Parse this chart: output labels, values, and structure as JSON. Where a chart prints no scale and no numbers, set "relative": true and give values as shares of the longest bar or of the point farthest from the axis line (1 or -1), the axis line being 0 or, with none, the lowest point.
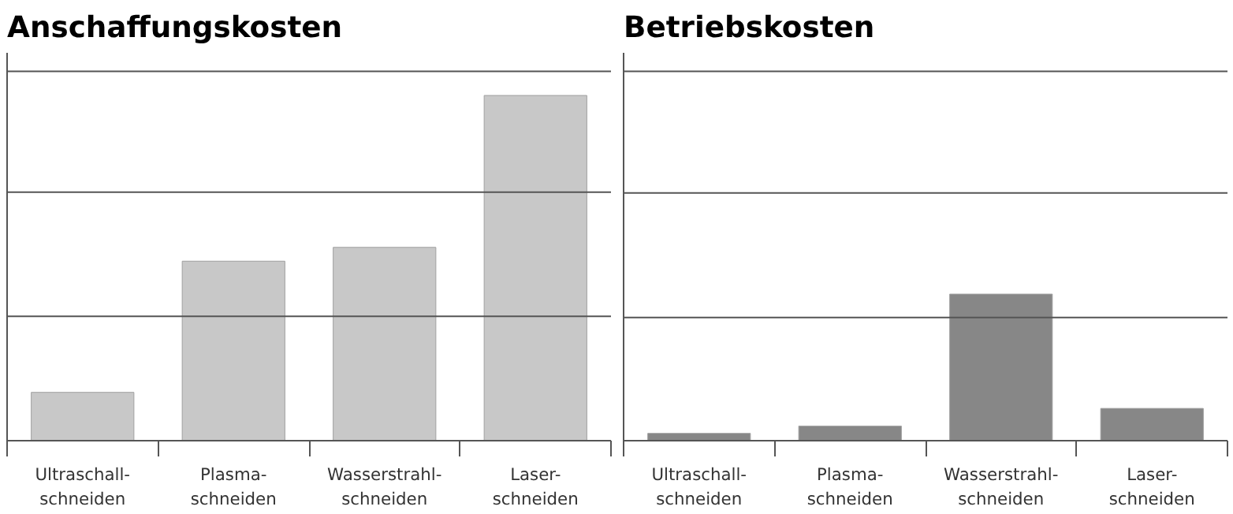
{
  "chart_data": [
    {
      "type": "bar",
      "title": "Anschaffungskosten",
      "categories": [
        "Ultraschall-\nschneiden",
        "Plasma-\nschneiden",
        "Wasserstrahl-\nschneiden",
        "Laser-\nschneiden"
      ],
      "values": [
        0.14,
        0.52,
        0.56,
        1
      ],
      "color": "#c8c8c8",
      "relative": true,
      "ref_lines": [
        {
          "axis": "y",
          "value": 0.36,
          "color": "#555555"
        },
        {
          "axis": "y",
          "value": 0.72,
          "color": "#555555"
        },
        {
          "axis": "y",
          "value": 1.07,
          "color": "#555555"
        }
      ]
    },
    {
      "type": "bar",
      "title": "Betriebskosten",
      "categories": [
        "Ultraschall-\nschneiden",
        "Plasma-\nschneiden",
        "Wasserstrahl-\nschneiden",
        "Laser-\nschneiden"
      ],
      "values": [
        0.05,
        0.1,
        1,
        0.22
      ],
      "color": "#878787",
      "relative": true,
      "ref_lines": [
        {
          "axis": "y",
          "value": 0.84,
          "color": "#555555"
        },
        {
          "axis": "y",
          "value": 1.69,
          "color": "#555555"
        },
        {
          "axis": "y",
          "value": 2.52,
          "color": "#555555"
        }
      ]
    }
  ]
}
